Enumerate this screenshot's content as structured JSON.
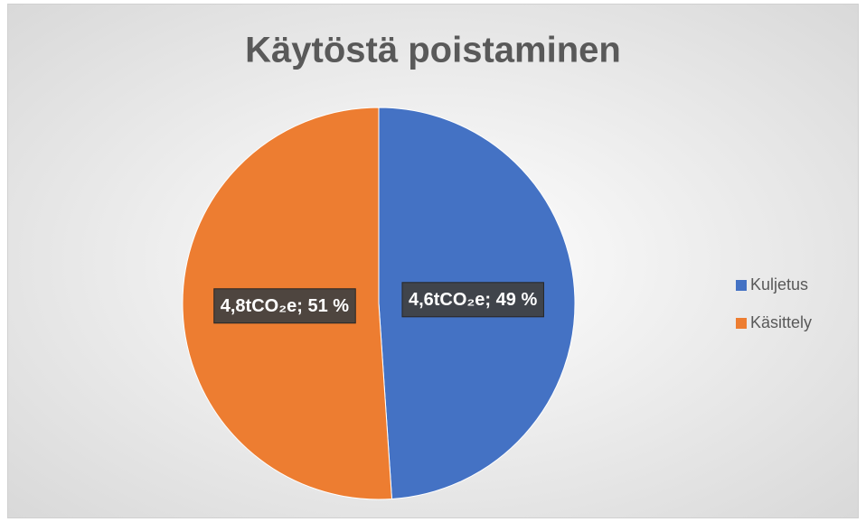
{
  "chart_data": {
    "type": "pie",
    "title": "Käytöstä poistaminen",
    "categories": [
      "Kuljetus",
      "Käsittely"
    ],
    "values": [
      4.6,
      4.8
    ],
    "value_labels": [
      "4,6tCO₂e; 49 %",
      "4,8tCO₂e; 51 %"
    ],
    "colors": [
      "#4472c4",
      "#ed7d31"
    ],
    "legend": "right"
  }
}
